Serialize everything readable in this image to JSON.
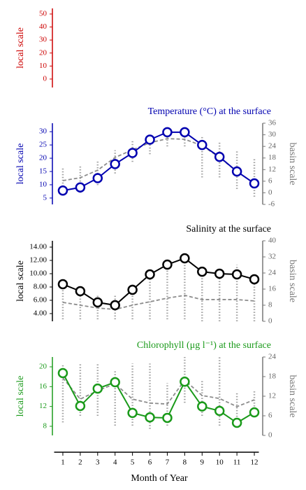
{
  "chart_data": [
    {
      "type": "line",
      "ylabel": "local scale",
      "color": "#cc0000",
      "x": [
        1,
        2,
        3,
        4,
        5,
        6,
        7,
        8,
        9,
        10,
        11,
        12
      ],
      "xlim": [
        0.5,
        12.5
      ],
      "ylim": [
        -6.5,
        54.3
      ],
      "yticks": [
        0,
        10,
        20,
        30,
        40,
        50
      ],
      "series": []
    },
    {
      "type": "line",
      "title": "Temperature (°C) at the surface",
      "ylabel": "local scale",
      "y2label": "basin scale",
      "color": "#0000b0",
      "x": [
        1,
        2,
        3,
        4,
        5,
        6,
        7,
        8,
        9,
        10,
        11,
        12
      ],
      "xlim": [
        0.5,
        12.5
      ],
      "ylim": [
        2.6,
        33.2
      ],
      "yticks": [
        5,
        10,
        15,
        20,
        25,
        30
      ],
      "y2lim": [
        -6,
        36
      ],
      "y2ticks": [
        -6,
        0,
        6,
        12,
        18,
        24,
        30,
        36
      ],
      "series": [
        {
          "style": "range",
          "axis": "y2",
          "color": "#8c8c8c",
          "ranges": [
            [
              -1,
              13
            ],
            [
              0,
              14
            ],
            [
              4,
              17
            ],
            [
              10,
              22
            ],
            [
              16,
              27
            ],
            [
              20,
              30
            ],
            [
              24,
              31
            ],
            [
              24,
              30
            ],
            [
              8,
              29
            ],
            [
              8,
              26
            ],
            [
              2,
              22
            ],
            [
              -2,
              18
            ]
          ]
        },
        {
          "style": "dashed",
          "axis": "y2",
          "color": "#8c8c8c",
          "values": [
            6.3,
            7.8,
            11.7,
            18.3,
            22.2,
            25.9,
            28,
            27.7,
            24.4,
            18.3,
            11,
            4.9
          ]
        },
        {
          "style": "solid",
          "color": "#0000b0",
          "values": [
            7.8,
            9,
            12.5,
            17.8,
            22,
            27,
            29.8,
            29.8,
            25,
            20.5,
            15,
            10.5
          ]
        }
      ]
    },
    {
      "type": "line",
      "title": "Salinity at the surface",
      "ylabel": "local scale",
      "y2label": "basin scale",
      "color": "#000000",
      "x": [
        1,
        2,
        3,
        4,
        5,
        6,
        7,
        8,
        9,
        10,
        11,
        12
      ],
      "xlim": [
        0.5,
        12.5
      ],
      "ylim": [
        2.84,
        14.95
      ],
      "yticks": [
        {
          "value": 4,
          "label": "4.00"
        },
        {
          "value": 6,
          "label": "6.00"
        },
        {
          "value": 8,
          "label": "8.00"
        },
        {
          "value": 10,
          "label": "10.00"
        },
        {
          "value": 12,
          "label": "12.00"
        },
        {
          "value": 14,
          "label": "14.00"
        }
      ],
      "y2lim": [
        0,
        40
      ],
      "y2ticks": [
        0,
        8,
        16,
        24,
        32,
        40
      ],
      "series": [
        {
          "style": "range",
          "axis": "y2",
          "color": "#8c8c8c",
          "ranges": [
            [
              1,
              17
            ],
            [
              1,
              16
            ],
            [
              1,
              13
            ],
            [
              1,
              13
            ],
            [
              1,
              19
            ],
            [
              1,
              23
            ],
            [
              1,
              28
            ],
            [
              1,
              31
            ],
            [
              0,
              25
            ],
            [
              0,
              24
            ],
            [
              0,
              28
            ],
            [
              0,
              22
            ]
          ]
        },
        {
          "style": "dashed",
          "axis": "y2",
          "color": "#8c8c8c",
          "values": [
            9.4,
            8,
            6.6,
            5.9,
            8,
            9.7,
            11.5,
            12.9,
            10.8,
            10.8,
            10.8,
            10.1
          ]
        },
        {
          "style": "solid",
          "color": "#000000",
          "values": [
            8.42,
            7.37,
            5.68,
            5.26,
            7.58,
            9.89,
            11.37,
            12.32,
            10.3,
            10,
            9.9,
            9.16
          ]
        }
      ]
    },
    {
      "type": "line",
      "title": "Chlorophyll (μg l⁻¹) at the surface",
      "ylabel": "local scale",
      "y2label": "basin scale",
      "color": "#1a9a1a",
      "x": [
        1,
        2,
        3,
        4,
        5,
        6,
        7,
        8,
        9,
        10,
        11,
        12
      ],
      "xlim": [
        0.5,
        12.5
      ],
      "xticks": [
        1,
        2,
        3,
        4,
        5,
        6,
        7,
        8,
        9,
        10,
        11,
        12
      ],
      "xlabel": "Month of Year",
      "ylim": [
        6.16,
        21.98
      ],
      "yticks": [
        8,
        12,
        16,
        20
      ],
      "y2lim": [
        0,
        24
      ],
      "y2ticks": [
        0,
        6,
        12,
        18,
        24
      ],
      "series": [
        {
          "style": "range",
          "axis": "y2",
          "color": "#8c8c8c",
          "ranges": [
            [
              4,
              22
            ],
            [
              6,
              22
            ],
            [
              6,
              22
            ],
            [
              3,
              20
            ],
            [
              3,
              22
            ],
            [
              2,
              22
            ],
            [
              3,
              16
            ],
            [
              10,
              24
            ],
            [
              6,
              17
            ],
            [
              3,
              24
            ],
            [
              4,
              13
            ],
            [
              8,
              14
            ]
          ]
        },
        {
          "style": "dashed",
          "axis": "y2",
          "color": "#8c8c8c",
          "values": [
            17.6,
            11.1,
            13.7,
            15.8,
            11.1,
            9.9,
            9.6,
            16.9,
            12.2,
            11.3,
            8.8,
            10.9
          ]
        },
        {
          "style": "solid",
          "color": "#1a9a1a",
          "values": [
            18.73,
            12.1,
            15.6,
            16.9,
            10.7,
            9.8,
            9.7,
            17,
            12,
            11.1,
            8.7,
            10.8
          ]
        }
      ]
    }
  ]
}
